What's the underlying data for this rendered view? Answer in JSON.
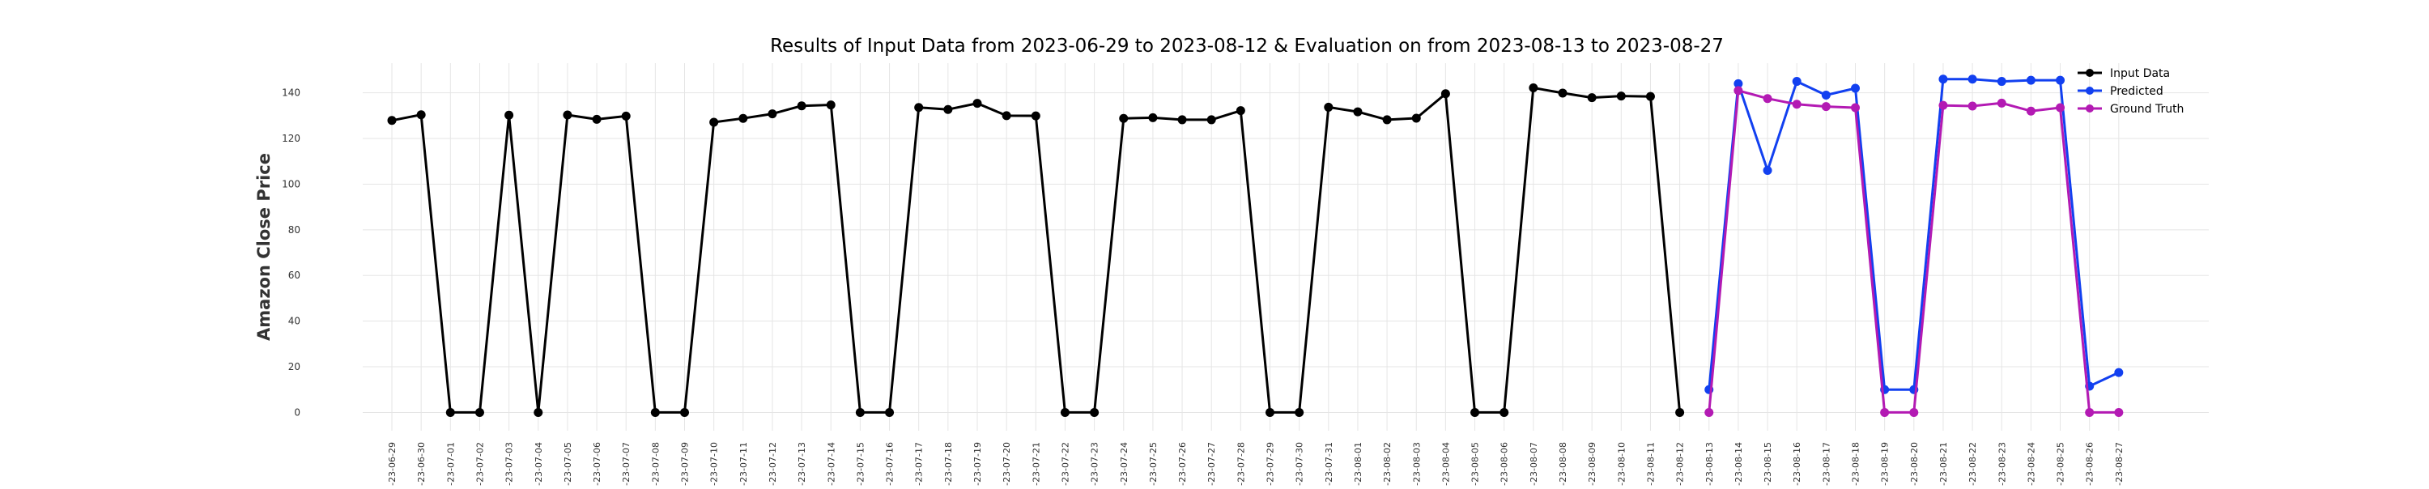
{
  "chart_data": {
    "type": "line",
    "title": "Results of Input Data from 2023-06-29 to 2023-08-12 & Evaluation on from 2023-08-13 to 2023-08-27",
    "xlabel": "",
    "ylabel": "Amazon Close Price",
    "ylim": [
      -8,
      153
    ],
    "yticks": [
      0,
      20,
      40,
      60,
      80,
      100,
      120,
      140
    ],
    "grid": true,
    "legend_position": "top-right",
    "x": [
      "2023-06-29",
      "2023-06-30",
      "2023-07-01",
      "2023-07-02",
      "2023-07-03",
      "2023-07-04",
      "2023-07-05",
      "2023-07-06",
      "2023-07-07",
      "2023-07-08",
      "2023-07-09",
      "2023-07-10",
      "2023-07-11",
      "2023-07-12",
      "2023-07-13",
      "2023-07-14",
      "2023-07-15",
      "2023-07-16",
      "2023-07-17",
      "2023-07-18",
      "2023-07-19",
      "2023-07-20",
      "2023-07-21",
      "2023-07-22",
      "2023-07-23",
      "2023-07-24",
      "2023-07-25",
      "2023-07-26",
      "2023-07-27",
      "2023-07-28",
      "2023-07-29",
      "2023-07-30",
      "2023-07-31",
      "2023-08-01",
      "2023-08-02",
      "2023-08-03",
      "2023-08-04",
      "2023-08-05",
      "2023-08-06",
      "2023-08-07",
      "2023-08-08",
      "2023-08-09",
      "2023-08-10",
      "2023-08-11",
      "2023-08-12",
      "2023-08-13",
      "2023-08-14",
      "2023-08-15",
      "2023-08-16",
      "2023-08-17",
      "2023-08-18",
      "2023-08-19",
      "2023-08-20",
      "2023-08-21",
      "2023-08-22",
      "2023-08-23",
      "2023-08-24",
      "2023-08-25",
      "2023-08-26",
      "2023-08-27"
    ],
    "x_tick_labels": [
      "-23-06-29",
      "-23-06-30",
      "-23-07-01",
      "-23-07-02",
      "-23-07-03",
      "-23-07-04",
      "-23-07-05",
      "-23-07-06",
      "-23-07-07",
      "-23-07-08",
      "-23-07-09",
      "-23-07-10",
      "-23-07-11",
      "-23-07-12",
      "-23-07-13",
      "-23-07-14",
      "-23-07-15",
      "-23-07-16",
      "-23-07-17",
      "-23-07-18",
      "-23-07-19",
      "-23-07-20",
      "-23-07-21",
      "-23-07-22",
      "-23-07-23",
      "-23-07-24",
      "-23-07-25",
      "-23-07-26",
      "-23-07-27",
      "-23-07-28",
      "-23-07-29",
      "-23-07-30",
      "-23-07-31",
      "-23-08-01",
      "-23-08-02",
      "-23-08-03",
      "-23-08-04",
      "-23-08-05",
      "-23-08-06",
      "-23-08-07",
      "-23-08-08",
      "-23-08-09",
      "-23-08-10",
      "-23-08-11",
      "-23-08-12",
      "-23-08-13",
      "-23-08-14",
      "-23-08-15",
      "-23-08-16",
      "-23-08-17",
      "-23-08-18",
      "-23-08-19",
      "-23-08-20",
      "-23-08-21",
      "-23-08-22",
      "-23-08-23",
      "-23-08-24",
      "-23-08-25",
      "-23-08-26",
      "-23-08-27"
    ],
    "series": [
      {
        "name": "Input Data",
        "color": "#000000",
        "x": [
          "2023-06-29",
          "2023-06-30",
          "2023-07-01",
          "2023-07-02",
          "2023-07-03",
          "2023-07-04",
          "2023-07-05",
          "2023-07-06",
          "2023-07-07",
          "2023-07-08",
          "2023-07-09",
          "2023-07-10",
          "2023-07-11",
          "2023-07-12",
          "2023-07-13",
          "2023-07-14",
          "2023-07-15",
          "2023-07-16",
          "2023-07-17",
          "2023-07-18",
          "2023-07-19",
          "2023-07-20",
          "2023-07-21",
          "2023-07-22",
          "2023-07-23",
          "2023-07-24",
          "2023-07-25",
          "2023-07-26",
          "2023-07-27",
          "2023-07-28",
          "2023-07-29",
          "2023-07-30",
          "2023-07-31",
          "2023-08-01",
          "2023-08-02",
          "2023-08-03",
          "2023-08-04",
          "2023-08-05",
          "2023-08-06",
          "2023-08-07",
          "2023-08-08",
          "2023-08-09",
          "2023-08-10",
          "2023-08-11",
          "2023-08-12"
        ],
        "values": [
          127.9,
          130.4,
          0,
          0,
          130.2,
          0,
          130.3,
          128.4,
          129.8,
          0,
          0,
          127.1,
          128.8,
          130.8,
          134.3,
          134.7,
          0,
          0,
          133.6,
          132.7,
          135.4,
          130.0,
          129.9,
          0,
          0,
          128.8,
          129.1,
          128.2,
          128.2,
          132.2,
          0,
          0,
          133.7,
          131.7,
          128.2,
          128.9,
          139.6,
          0,
          0,
          142.2,
          139.9,
          137.9,
          138.6,
          138.4,
          0
        ]
      },
      {
        "name": "Predicted",
        "color": "#1240f0",
        "x": [
          "2023-08-13",
          "2023-08-14",
          "2023-08-15",
          "2023-08-16",
          "2023-08-17",
          "2023-08-18",
          "2023-08-19",
          "2023-08-20",
          "2023-08-21",
          "2023-08-22",
          "2023-08-23",
          "2023-08-24",
          "2023-08-25",
          "2023-08-26",
          "2023-08-27"
        ],
        "values": [
          10.0,
          144.0,
          106.0,
          145.0,
          139.0,
          142.0,
          10.0,
          10.0,
          146.0,
          146.0,
          145.0,
          145.5,
          145.5,
          11.5,
          17.5
        ]
      },
      {
        "name": "Ground Truth",
        "color": "#b31ab3",
        "x": [
          "2023-08-13",
          "2023-08-14",
          "2023-08-15",
          "2023-08-16",
          "2023-08-17",
          "2023-08-18",
          "2023-08-19",
          "2023-08-20",
          "2023-08-21",
          "2023-08-22",
          "2023-08-23",
          "2023-08-24",
          "2023-08-25",
          "2023-08-26",
          "2023-08-27"
        ],
        "values": [
          0,
          141.0,
          137.5,
          135.0,
          134.0,
          133.5,
          0,
          0,
          134.5,
          134.2,
          135.5,
          132.0,
          133.5,
          0,
          0
        ]
      }
    ]
  }
}
